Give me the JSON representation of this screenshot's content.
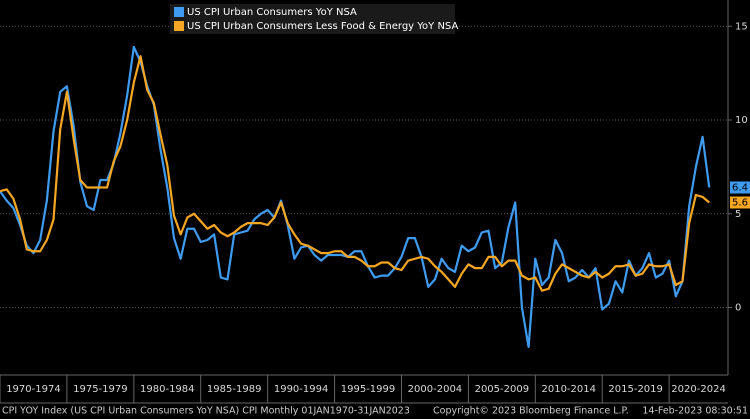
{
  "chart_data": {
    "type": "line",
    "x": [
      1970.0,
      1970.5,
      1971.0,
      1971.5,
      1972.0,
      1972.5,
      1973.0,
      1973.5,
      1974.0,
      1974.5,
      1975.0,
      1975.5,
      1976.0,
      1976.5,
      1977.0,
      1977.5,
      1978.0,
      1978.5,
      1979.0,
      1979.5,
      1980.0,
      1980.5,
      1981.0,
      1981.5,
      1982.0,
      1982.5,
      1983.0,
      1983.5,
      1984.0,
      1984.5,
      1985.0,
      1985.5,
      1986.0,
      1986.5,
      1987.0,
      1987.5,
      1988.0,
      1988.5,
      1989.0,
      1989.5,
      1990.0,
      1990.5,
      1991.0,
      1991.5,
      1992.0,
      1992.5,
      1993.0,
      1993.5,
      1994.0,
      1994.5,
      1995.0,
      1995.5,
      1996.0,
      1996.5,
      1997.0,
      1997.5,
      1998.0,
      1998.5,
      1999.0,
      1999.5,
      2000.0,
      2000.5,
      2001.0,
      2001.5,
      2002.0,
      2002.5,
      2003.0,
      2003.5,
      2004.0,
      2004.5,
      2005.0,
      2005.5,
      2006.0,
      2006.5,
      2007.0,
      2007.5,
      2008.0,
      2008.5,
      2009.0,
      2009.5,
      2010.0,
      2010.5,
      2011.0,
      2011.5,
      2012.0,
      2012.5,
      2013.0,
      2013.5,
      2014.0,
      2014.5,
      2015.0,
      2015.5,
      2016.0,
      2016.5,
      2017.0,
      2017.5,
      2018.0,
      2018.5,
      2019.0,
      2019.5,
      2020.0,
      2020.5,
      2021.0,
      2021.5,
      2022.0,
      2022.5,
      2023.0
    ],
    "series": [
      {
        "name": "US CPI Urban Consumers YoY NSA",
        "color": "#3f9bf0",
        "values": [
          6.2,
          5.7,
          5.3,
          4.4,
          3.3,
          2.9,
          3.6,
          5.7,
          9.4,
          11.5,
          11.8,
          9.7,
          6.7,
          5.4,
          5.2,
          6.8,
          6.8,
          7.7,
          9.3,
          11.3,
          13.9,
          13.1,
          11.8,
          10.8,
          8.4,
          6.4,
          3.7,
          2.6,
          4.2,
          4.2,
          3.5,
          3.6,
          3.9,
          1.6,
          1.5,
          3.9,
          4.0,
          4.1,
          4.7,
          5.0,
          5.2,
          4.8,
          5.7,
          4.4,
          2.6,
          3.2,
          3.3,
          2.8,
          2.5,
          2.8,
          2.8,
          2.8,
          2.7,
          3.0,
          3.0,
          2.2,
          1.6,
          1.7,
          1.7,
          2.1,
          2.7,
          3.7,
          3.7,
          2.7,
          1.1,
          1.5,
          2.6,
          2.1,
          1.9,
          3.3,
          3.0,
          3.2,
          4.0,
          4.1,
          2.1,
          2.4,
          4.3,
          5.6,
          0.0,
          -2.1,
          2.6,
          1.2,
          1.6,
          3.6,
          2.9,
          1.4,
          1.6,
          2.0,
          1.6,
          2.1,
          -0.1,
          0.2,
          1.4,
          0.8,
          2.5,
          1.7,
          2.1,
          2.9,
          1.6,
          1.8,
          2.5,
          0.6,
          1.4,
          5.4,
          7.5,
          9.1,
          6.4
        ]
      },
      {
        "name": "US CPI Urban Consumers Less Food & Energy YoY NSA",
        "color": "#f5a623",
        "values": [
          6.2,
          6.3,
          5.8,
          4.7,
          3.1,
          3.0,
          3.0,
          3.6,
          4.7,
          9.5,
          11.5,
          9.0,
          6.8,
          6.4,
          6.4,
          6.4,
          6.4,
          7.8,
          8.6,
          10.0,
          12.0,
          13.4,
          11.6,
          10.9,
          9.2,
          7.6,
          4.9,
          3.9,
          4.8,
          5.0,
          4.6,
          4.2,
          4.4,
          4.0,
          3.8,
          4.0,
          4.3,
          4.5,
          4.5,
          4.5,
          4.4,
          4.8,
          5.6,
          4.5,
          3.9,
          3.4,
          3.3,
          3.1,
          2.9,
          2.9,
          3.0,
          3.0,
          2.7,
          2.7,
          2.5,
          2.2,
          2.2,
          2.4,
          2.4,
          2.1,
          2.0,
          2.5,
          2.6,
          2.7,
          2.6,
          2.2,
          1.9,
          1.5,
          1.1,
          1.8,
          2.3,
          2.1,
          2.1,
          2.7,
          2.7,
          2.2,
          2.5,
          2.5,
          1.7,
          1.5,
          1.6,
          0.9,
          1.0,
          1.8,
          2.3,
          2.1,
          1.9,
          1.7,
          1.6,
          1.9,
          1.6,
          1.8,
          2.2,
          2.2,
          2.3,
          1.7,
          1.8,
          2.3,
          2.2,
          2.2,
          2.3,
          1.2,
          1.4,
          4.5,
          6.0,
          5.9,
          5.6
        ]
      }
    ],
    "xlim": [
      1970,
      2024.4
    ],
    "xticks": [
      {
        "value": 1970,
        "label": "1970-1974"
      },
      {
        "value": 1975,
        "label": "1975-1979"
      },
      {
        "value": 1980,
        "label": "1980-1984"
      },
      {
        "value": 1985,
        "label": "1985-1989"
      },
      {
        "value": 1990,
        "label": "1990-1994"
      },
      {
        "value": 1995,
        "label": "1995-1999"
      },
      {
        "value": 2000,
        "label": "2000-2004"
      },
      {
        "value": 2005,
        "label": "2005-2009"
      },
      {
        "value": 2010,
        "label": "2010-2014"
      },
      {
        "value": 2015,
        "label": "2015-2019"
      },
      {
        "value": 2020,
        "label": "2020-2024"
      }
    ],
    "ylim": [
      -3.6,
      16.4
    ],
    "yticks": [
      0,
      5,
      10,
      15
    ],
    "grid": true,
    "legend": "top-left",
    "footer": {
      "source": "CPI YOY Index (US CPI Urban Consumers YoY NSA) CPI  Monthly 01JAN1970-31JAN2023",
      "copyright": "Copyright© 2023 Bloomberg Finance L.P.",
      "timestamp": "14-Feb-2023 08:30:51"
    }
  }
}
